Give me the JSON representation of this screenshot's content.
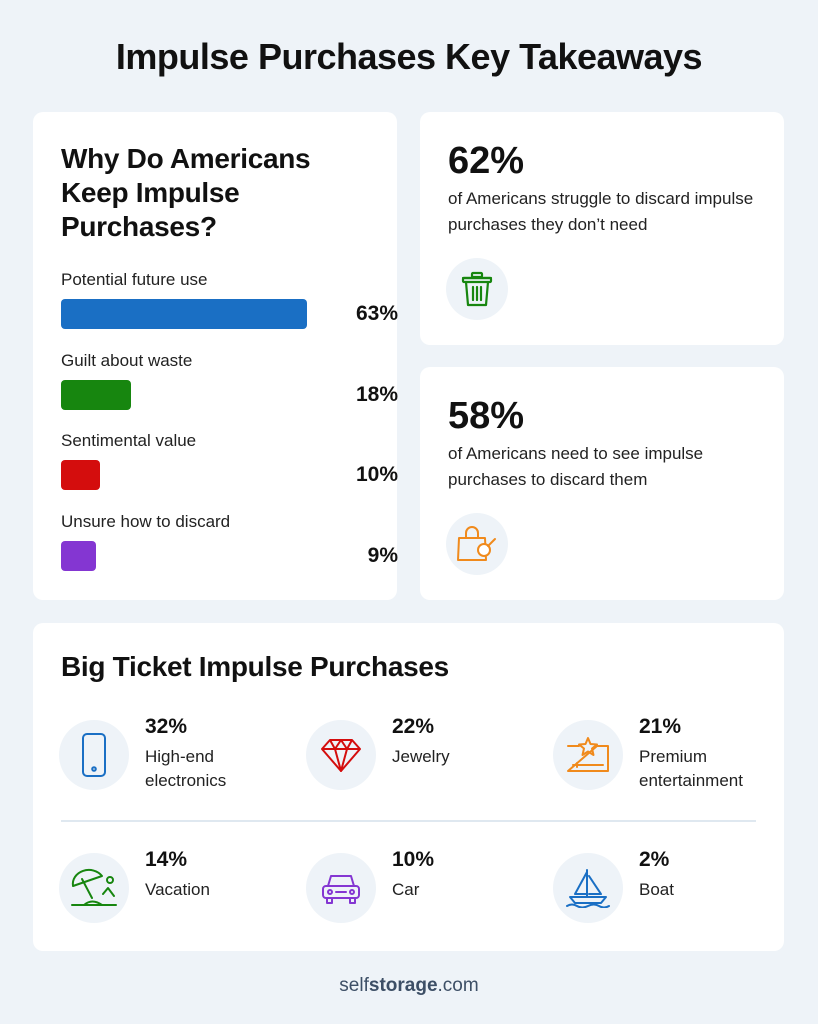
{
  "page": {
    "title": "Impulse Purchases Key Takeaways"
  },
  "why_card": {
    "title": "Why Do Americans Keep Impulse Purchases?",
    "reasons": [
      {
        "label": "Potential future use",
        "value_text": "63%",
        "value": 63,
        "color": "#1a6fc4"
      },
      {
        "label": "Guilt about waste",
        "value_text": "18%",
        "value": 18,
        "color": "#17860f"
      },
      {
        "label": "Sentimental value",
        "value_text": "10%",
        "value": 10,
        "color": "#d40d0d"
      },
      {
        "label": "Unsure how to discard",
        "value_text": "9%",
        "value": 9,
        "color": "#8436d2"
      }
    ]
  },
  "stat_cards": [
    {
      "percent": "62%",
      "description": "of Americans struggle to discard impulse purchases they don’t need",
      "icon": "trash-can-icon",
      "icon_color": "#17860f"
    },
    {
      "percent": "58%",
      "description": "of Americans need to see impulse purchases to discard them",
      "icon": "shopping-bag-search-icon",
      "icon_color": "#f08a1c"
    }
  ],
  "big_ticket": {
    "title": "Big Ticket Impulse Purchases",
    "items": [
      {
        "percent": "32%",
        "label": "High-end electronics",
        "icon": "smartphone-icon",
        "icon_color": "#1a6fc4"
      },
      {
        "percent": "22%",
        "label": "Jewelry",
        "icon": "diamond-icon",
        "icon_color": "#d40d0d"
      },
      {
        "percent": "21%",
        "label": "Premium entertainment",
        "icon": "ticket-star-icon",
        "icon_color": "#f08a1c"
      },
      {
        "percent": "14%",
        "label": "Vacation",
        "icon": "beach-umbrella-icon",
        "icon_color": "#17860f"
      },
      {
        "percent": "10%",
        "label": "Car",
        "icon": "car-icon",
        "icon_color": "#8436d2"
      },
      {
        "percent": "2%",
        "label": "Boat",
        "icon": "sailboat-icon",
        "icon_color": "#1a6fc4"
      }
    ]
  },
  "footer": {
    "brand_prefix": "self",
    "brand_bold": "storage",
    "brand_suffix": ".com"
  },
  "chart_data": {
    "type": "bar",
    "title": "Why Do Americans Keep Impulse Purchases?",
    "categories": [
      "Potential future use",
      "Guilt about waste",
      "Sentimental value",
      "Unsure how to discard"
    ],
    "values": [
      63,
      18,
      10,
      9
    ],
    "colors": [
      "#1a6fc4",
      "#17860f",
      "#d40d0d",
      "#8436d2"
    ],
    "xlabel": "",
    "ylabel": "",
    "orientation": "horizontal",
    "grid": false
  }
}
